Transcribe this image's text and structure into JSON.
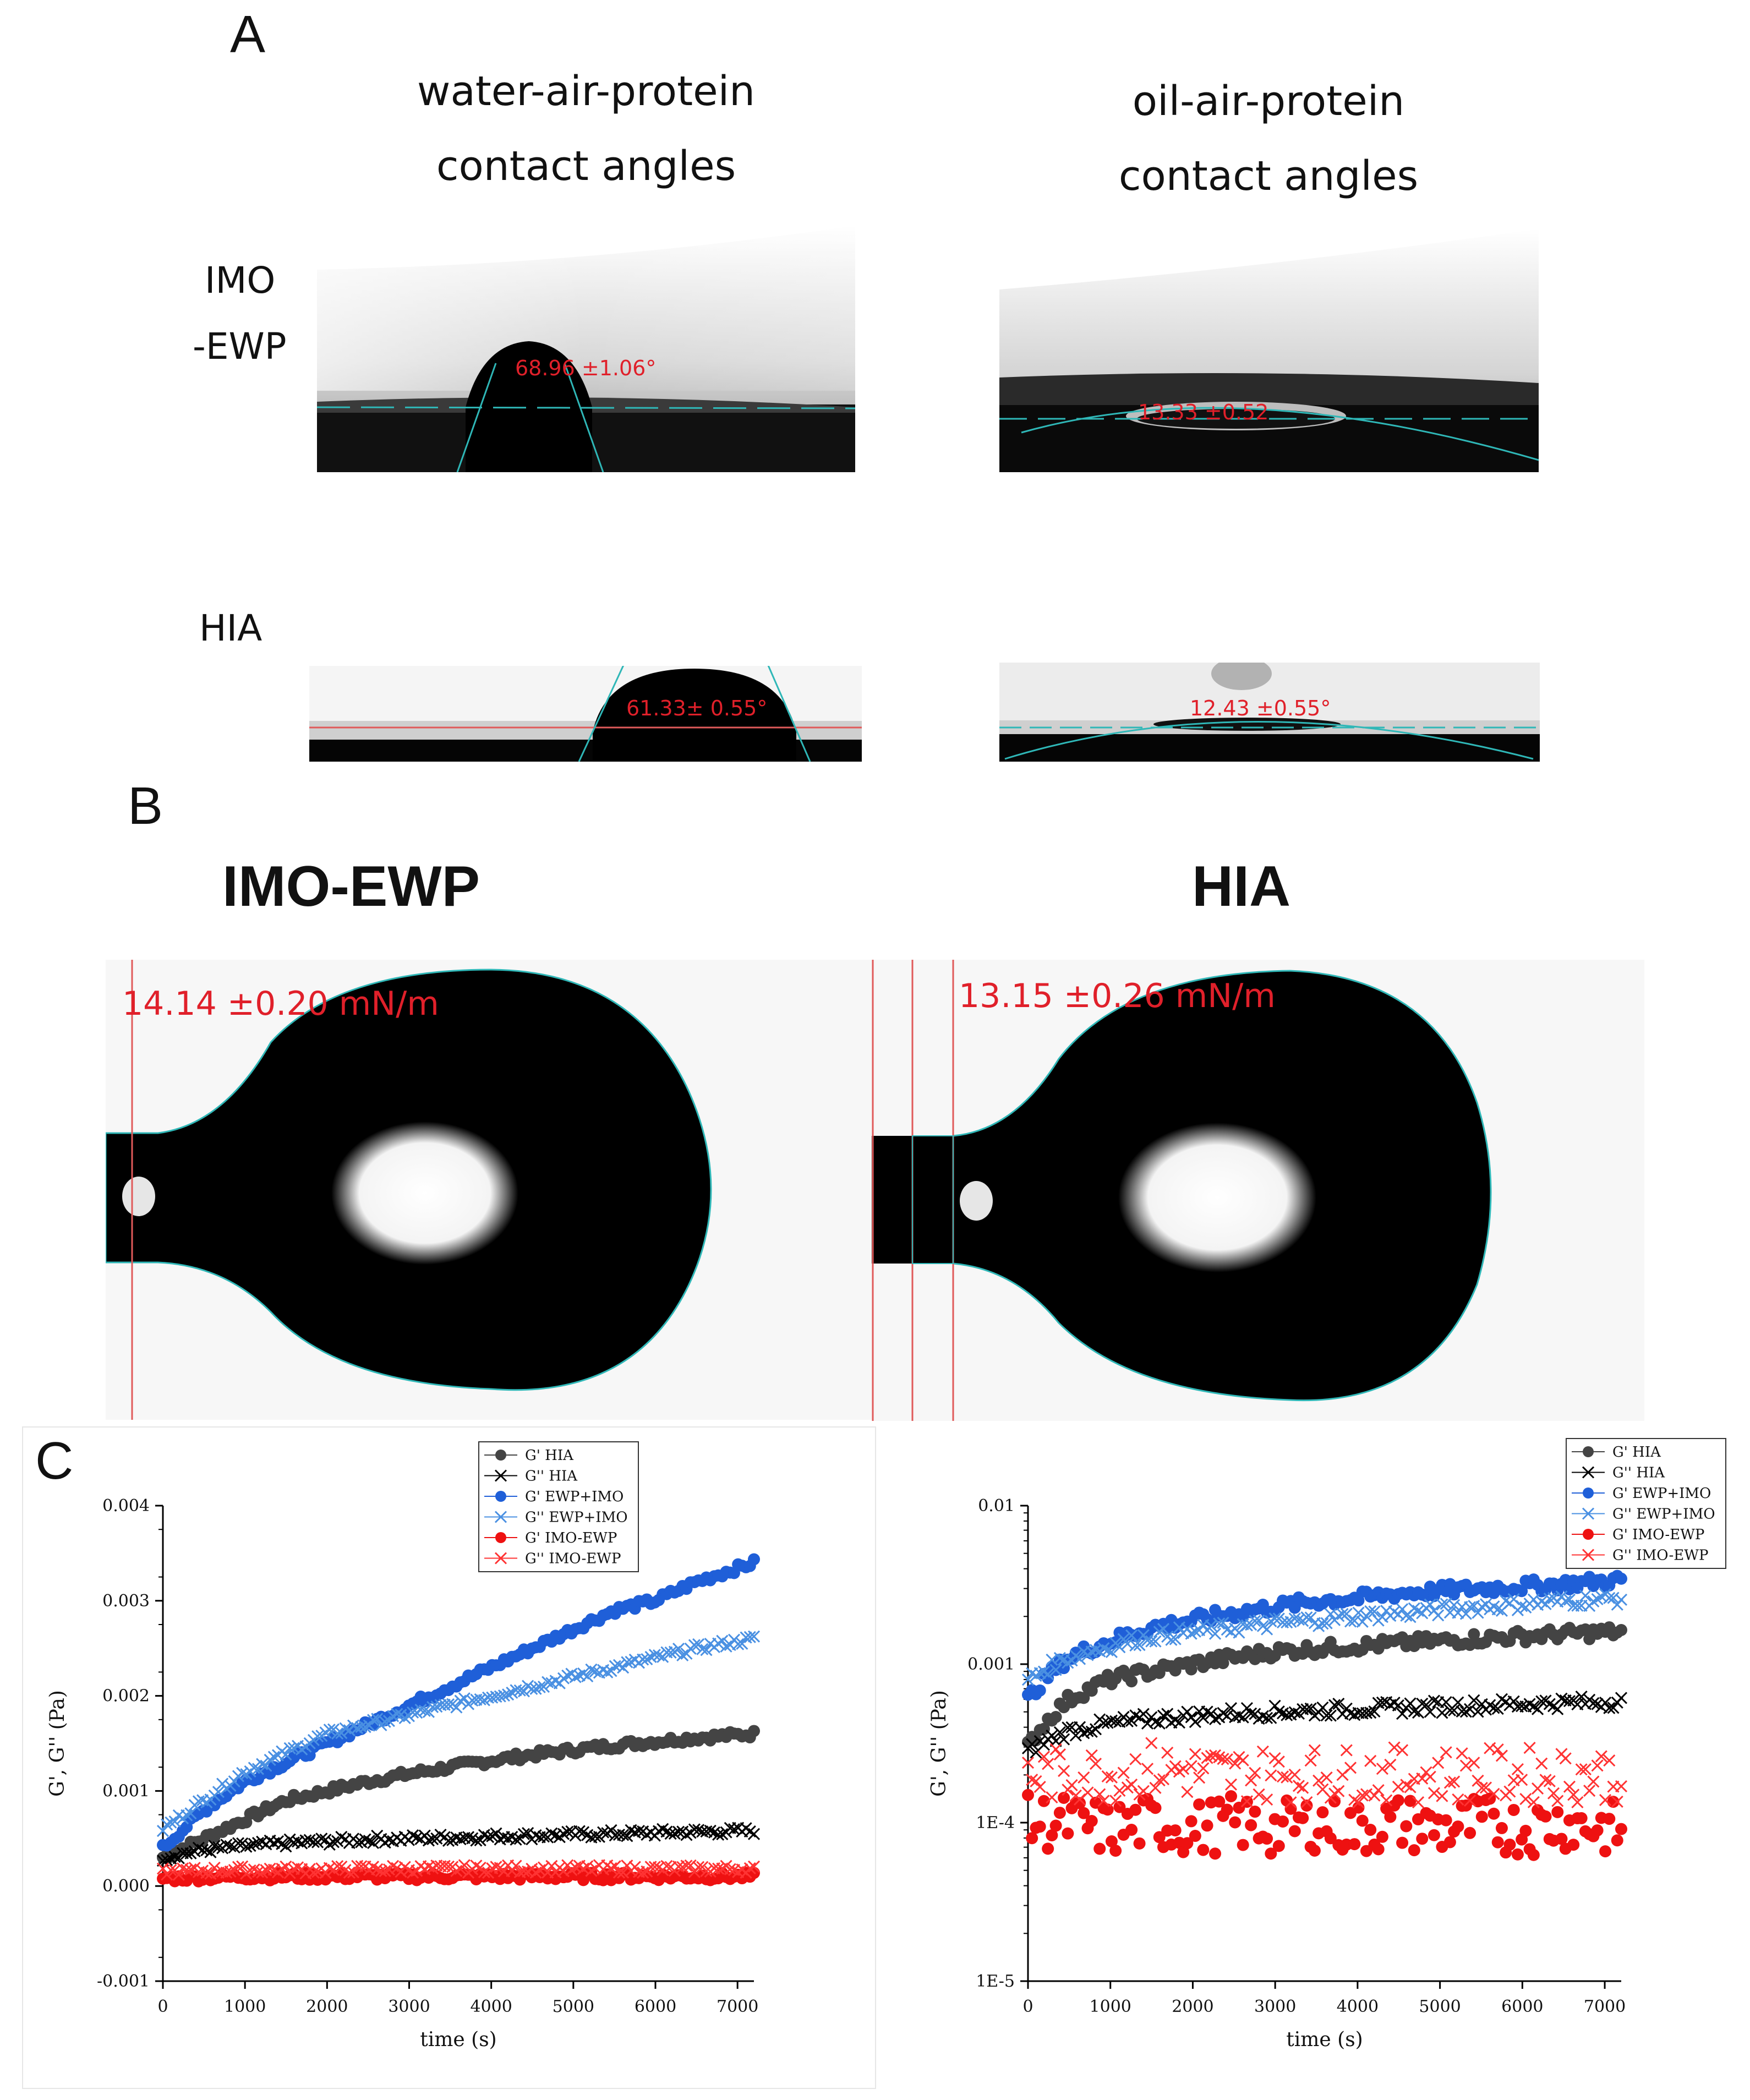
{
  "panel_a": {
    "letter": "A",
    "col_left_line1": "water-air-protein",
    "col_left_line2": "contact angles",
    "col_right_line1": "oil-air-protein",
    "col_right_line2": "contact angles",
    "row1_line1": "IMO",
    "row1_line2": "-EWP",
    "row2_label": "HIA",
    "angle_imo_water": "68.96 ±1.06°",
    "angle_imo_oil": "13.33 ±0.52",
    "angle_hia_water": "61.33± 0.55°",
    "angle_hia_oil": "12.43 ±0.55°"
  },
  "panel_b": {
    "letter": "B",
    "left_title": "IMO-EWP",
    "right_title": "HIA",
    "left_tension": "14.14 ±0.20 mN/m",
    "right_tension": "13.15 ±0.26 mN/m"
  },
  "panel_c": {
    "letter": "C"
  },
  "chart_data": [
    {
      "type": "scatter",
      "title": "",
      "xlabel": "time (s)",
      "ylabel": "G', G'' (Pa)",
      "xlim": [
        0,
        7200
      ],
      "ylim": [
        -0.001,
        0.004
      ],
      "yscale": "linear",
      "xticks": [
        0,
        1000,
        2000,
        3000,
        4000,
        5000,
        6000,
        7000
      ],
      "xtick_labels": [
        "0",
        "1000",
        "2000",
        "3000",
        "4000",
        "5000",
        "6000",
        "7000"
      ],
      "yticks": [
        -0.001,
        0,
        0.001,
        0.002,
        0.003,
        0.004
      ],
      "ytick_labels": [
        "-0.001",
        "0.000",
        "0.001",
        "0.002",
        "0.003",
        "0.004"
      ],
      "legend_position": "top-right",
      "series": [
        {
          "name": "G' HIA",
          "color": "#444444",
          "marker": "circle",
          "x": [
            0,
            500,
            1000,
            1500,
            2000,
            2500,
            3000,
            3500,
            4000,
            4500,
            5000,
            5500,
            6000,
            6500,
            7200
          ],
          "values": [
            0.0003,
            0.0005,
            0.0007,
            0.0009,
            0.001,
            0.0011,
            0.00118,
            0.00125,
            0.00132,
            0.00138,
            0.00143,
            0.00148,
            0.00152,
            0.00156,
            0.0016
          ]
        },
        {
          "name": "G'' HIA",
          "color": "#000000",
          "marker": "x",
          "x": [
            0,
            500,
            1000,
            1500,
            2000,
            2500,
            3000,
            3500,
            4000,
            4500,
            5000,
            5500,
            6000,
            6500,
            7200
          ],
          "values": [
            0.0003,
            0.00038,
            0.00042,
            0.00045,
            0.00047,
            0.00049,
            0.0005,
            0.00051,
            0.00052,
            0.00053,
            0.00054,
            0.00055,
            0.00056,
            0.00057,
            0.00058
          ]
        },
        {
          "name": "G' EWP+IMO",
          "color": "#1f5fd8",
          "marker": "circle",
          "x": [
            0,
            500,
            1000,
            1500,
            2000,
            2500,
            3000,
            3500,
            4000,
            4500,
            5000,
            5500,
            6000,
            6500,
            7200
          ],
          "values": [
            0.0004,
            0.0008,
            0.0011,
            0.0013,
            0.0015,
            0.0017,
            0.0019,
            0.0021,
            0.0023,
            0.0025,
            0.0027,
            0.0029,
            0.003,
            0.0032,
            0.0034
          ]
        },
        {
          "name": "G'' EWP+IMO",
          "color": "#4a90e2",
          "marker": "x",
          "x": [
            0,
            500,
            1000,
            1500,
            2000,
            2500,
            3000,
            3500,
            4000,
            4500,
            5000,
            5500,
            6000,
            6500,
            7200
          ],
          "values": [
            0.0006,
            0.0009,
            0.0012,
            0.0014,
            0.0016,
            0.0017,
            0.0018,
            0.0019,
            0.002,
            0.0021,
            0.0022,
            0.0023,
            0.0024,
            0.0025,
            0.0026
          ]
        },
        {
          "name": "G' IMO-EWP",
          "color": "#ee1111",
          "marker": "circle",
          "x": [
            0,
            500,
            1000,
            1500,
            2000,
            2500,
            3000,
            3500,
            4000,
            4500,
            5000,
            5500,
            6000,
            6500,
            7200
          ],
          "values": [
            8e-05,
            9e-05,
            0.0001,
            0.0001,
            0.0001,
            0.0001,
            0.0001,
            0.0001,
            0.0001,
            0.0001,
            0.0001,
            0.0001,
            0.0001,
            0.0001,
            0.0001
          ]
        },
        {
          "name": "G'' IMO-EWP",
          "color": "#ff3333",
          "marker": "x",
          "x": [
            0,
            500,
            1000,
            1500,
            2000,
            2500,
            3000,
            3500,
            4000,
            4500,
            5000,
            5500,
            6000,
            6500,
            7200
          ],
          "values": [
            0.00015,
            0.00016,
            0.00017,
            0.00017,
            0.00017,
            0.00018,
            0.00018,
            0.00018,
            0.00018,
            0.00018,
            0.00018,
            0.00018,
            0.00018,
            0.00018,
            0.00018
          ]
        }
      ]
    },
    {
      "type": "scatter",
      "title": "",
      "xlabel": "time (s)",
      "ylabel": "G', G'' (Pa)",
      "xlim": [
        0,
        7200
      ],
      "ylim": [
        1e-05,
        0.01
      ],
      "yscale": "log",
      "xticks": [
        0,
        1000,
        2000,
        3000,
        4000,
        5000,
        6000,
        7000
      ],
      "xtick_labels": [
        "0",
        "1000",
        "2000",
        "3000",
        "4000",
        "5000",
        "6000",
        "7000"
      ],
      "yticks": [
        1e-05,
        0.0001,
        0.001,
        0.01
      ],
      "ytick_labels": [
        "1E-5",
        "1E-4",
        "0.001",
        "0.01"
      ],
      "legend_position": "top-right",
      "series": [
        {
          "name": "G' HIA",
          "color": "#444444",
          "marker": "circle",
          "x": [
            0,
            500,
            1000,
            1500,
            2000,
            2500,
            3000,
            3500,
            4000,
            4500,
            5000,
            5500,
            6000,
            6500,
            7200
          ],
          "values": [
            0.0003,
            0.0006,
            0.0008,
            0.0009,
            0.001,
            0.0011,
            0.0012,
            0.00125,
            0.0013,
            0.00135,
            0.0014,
            0.00145,
            0.0015,
            0.00155,
            0.0016
          ]
        },
        {
          "name": "G'' HIA",
          "color": "#000000",
          "marker": "x",
          "x": [
            0,
            500,
            1000,
            1500,
            2000,
            2500,
            3000,
            3500,
            4000,
            4500,
            5000,
            5500,
            6000,
            6500,
            7200
          ],
          "values": [
            0.00028,
            0.00038,
            0.00042,
            0.00045,
            0.00047,
            0.00049,
            0.0005,
            0.00051,
            0.00052,
            0.00053,
            0.00054,
            0.00055,
            0.00056,
            0.00057,
            0.00058
          ]
        },
        {
          "name": "G' EWP+IMO",
          "color": "#1f5fd8",
          "marker": "circle",
          "x": [
            0,
            500,
            1000,
            1500,
            2000,
            2500,
            3000,
            3500,
            4000,
            4500,
            5000,
            5500,
            6000,
            6500,
            7200
          ],
          "values": [
            0.0006,
            0.0011,
            0.0014,
            0.0017,
            0.0019,
            0.0021,
            0.0023,
            0.0025,
            0.0026,
            0.0028,
            0.0029,
            0.003,
            0.0031,
            0.0032,
            0.0034
          ]
        },
        {
          "name": "G'' EWP+IMO",
          "color": "#4a90e2",
          "marker": "x",
          "x": [
            0,
            500,
            1000,
            1500,
            2000,
            2500,
            3000,
            3500,
            4000,
            4500,
            5000,
            5500,
            6000,
            6500,
            7200
          ],
          "values": [
            0.0008,
            0.0011,
            0.0013,
            0.0015,
            0.0016,
            0.0017,
            0.0018,
            0.0019,
            0.002,
            0.0021,
            0.0022,
            0.0023,
            0.0024,
            0.0025,
            0.0026
          ]
        },
        {
          "name": "G' IMO-EWP",
          "color": "#ee1111",
          "marker": "circle",
          "x": [
            0,
            500,
            1000,
            1500,
            2000,
            2500,
            3000,
            3500,
            4000,
            4500,
            5000,
            5500,
            6000,
            6500,
            7200
          ],
          "values": [
            0.0001,
            0.0001,
            9e-05,
            0.0001,
            9e-05,
            0.0001,
            9e-05,
            0.0001,
            9e-05,
            0.0001,
            9e-05,
            0.0001,
            9e-05,
            0.0001,
            9e-05
          ]
        },
        {
          "name": "G'' IMO-EWP",
          "color": "#ff3333",
          "marker": "x",
          "x": [
            0,
            500,
            1000,
            1500,
            2000,
            2500,
            3000,
            3500,
            4000,
            4500,
            5000,
            5500,
            6000,
            6500,
            7200
          ],
          "values": [
            0.0002,
            0.0002,
            0.0002,
            0.00022,
            0.00021,
            0.0002,
            0.0002,
            0.0002,
            0.0002,
            0.0002,
            0.0002,
            0.0002,
            0.0002,
            0.0002,
            0.0002
          ]
        }
      ]
    }
  ]
}
